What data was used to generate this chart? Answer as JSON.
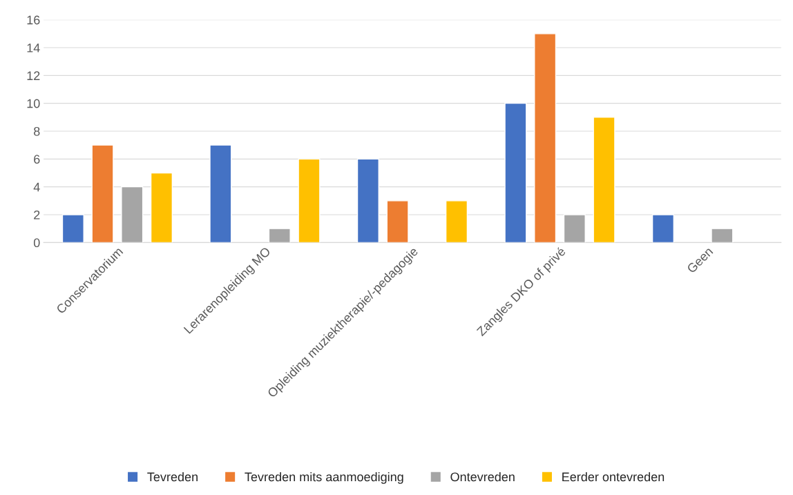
{
  "chart_data": {
    "type": "bar",
    "categories": [
      "Conservatorium",
      "Lerarenopleiding MO",
      "Opleiding muziektherapie/-pedagogie",
      "Zangles DKO of privé",
      "Geen"
    ],
    "series": [
      {
        "name": "Tevreden",
        "color": "#4472c4",
        "values": [
          2,
          7,
          6,
          10,
          2
        ]
      },
      {
        "name": "Tevreden mits aanmoediging",
        "color": "#ed7d31",
        "values": [
          7,
          null,
          3,
          15,
          null
        ]
      },
      {
        "name": "Ontevreden",
        "color": "#a5a5a5",
        "values": [
          4,
          1,
          null,
          2,
          1
        ]
      },
      {
        "name": "Eerder ontevreden",
        "color": "#ffc000",
        "values": [
          5,
          6,
          3,
          9,
          null
        ]
      }
    ],
    "ylim": [
      0,
      16
    ],
    "yticks": [
      0,
      2,
      4,
      6,
      8,
      10,
      12,
      14,
      16
    ],
    "grid": "y",
    "legend": "bottom"
  }
}
